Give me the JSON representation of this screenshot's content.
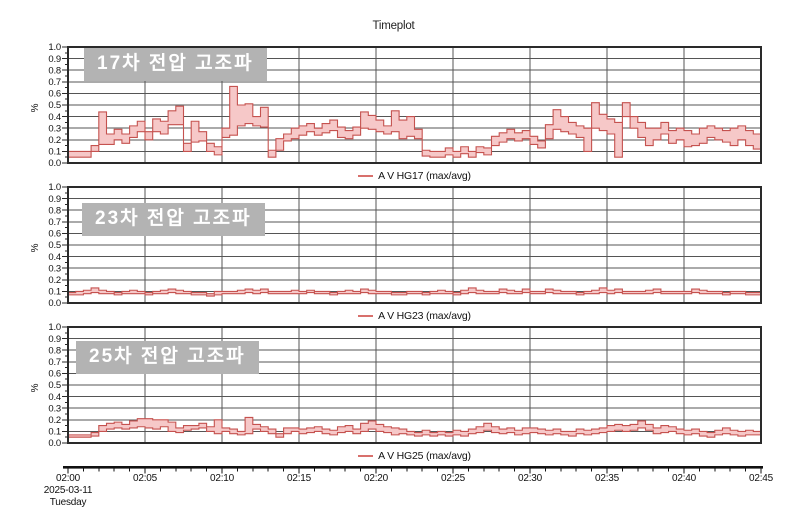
{
  "title": "Timeplot",
  "x_axis": {
    "tick_labels": [
      "02:00",
      "02:05",
      "02:10",
      "02:15",
      "02:20",
      "02:25",
      "02:30",
      "02:35",
      "02:40",
      "02:45"
    ],
    "date": "2025-03-11",
    "day": "Tuesday",
    "minor_tick_minutes": 1,
    "major_tick_minutes": 5
  },
  "y_axis": {
    "unit": "%",
    "tick_labels": [
      "0.0",
      "0.1",
      "0.2",
      "0.3",
      "0.4",
      "0.5",
      "0.6",
      "0.7",
      "0.8",
      "0.9",
      "1.0"
    ]
  },
  "colors": {
    "band_fill": "#f6c8c8",
    "band_stroke": "#c5524f",
    "grid": "#555555",
    "frame": "#2a2a2a",
    "axis": "#111111",
    "label_box_bg": "#b3b3b3",
    "label_box_text": "#ffffff",
    "legend_marker": "#d8706c"
  },
  "chart_data": [
    {
      "type": "area",
      "label": "17차 전압 고조파",
      "legend": "A V HG17 (max/avg)",
      "ylabel": "%",
      "ylim": [
        0,
        1
      ],
      "x_start": "02:00",
      "x_end": "02:45",
      "interval_seconds": 30,
      "grid": true,
      "legend_position": "bottom-center",
      "series": [
        {
          "name": "avg",
          "values": [
            0.05,
            0.05,
            0.05,
            0.1,
            0.16,
            0.16,
            0.2,
            0.17,
            0.22,
            0.27,
            0.2,
            0.27,
            0.25,
            0.33,
            0.33,
            0.1,
            0.18,
            0.19,
            0.1,
            0.07,
            0.22,
            0.24,
            0.32,
            0.34,
            0.32,
            0.31,
            0.05,
            0.11,
            0.19,
            0.21,
            0.24,
            0.27,
            0.24,
            0.26,
            0.28,
            0.22,
            0.21,
            0.24,
            0.3,
            0.29,
            0.27,
            0.25,
            0.27,
            0.21,
            0.23,
            0.21,
            0.06,
            0.05,
            0.05,
            0.07,
            0.05,
            0.08,
            0.05,
            0.09,
            0.07,
            0.15,
            0.18,
            0.21,
            0.19,
            0.21,
            0.16,
            0.13,
            0.21,
            0.29,
            0.27,
            0.25,
            0.22,
            0.1,
            0.3,
            0.28,
            0.25,
            0.05,
            0.4,
            0.3,
            0.22,
            0.15,
            0.2,
            0.25,
            0.17,
            0.2,
            0.14,
            0.15,
            0.17,
            0.22,
            0.2,
            0.18,
            0.15,
            0.2,
            0.15,
            0.12
          ]
        },
        {
          "name": "max",
          "values": [
            0.1,
            0.1,
            0.1,
            0.15,
            0.44,
            0.25,
            0.29,
            0.25,
            0.32,
            0.36,
            0.27,
            0.38,
            0.36,
            0.45,
            0.49,
            0.17,
            0.36,
            0.27,
            0.17,
            0.14,
            0.3,
            0.66,
            0.5,
            0.51,
            0.4,
            0.48,
            0.11,
            0.21,
            0.25,
            0.3,
            0.32,
            0.34,
            0.3,
            0.34,
            0.37,
            0.31,
            0.28,
            0.31,
            0.44,
            0.41,
            0.37,
            0.32,
            0.45,
            0.37,
            0.4,
            0.29,
            0.11,
            0.1,
            0.1,
            0.13,
            0.1,
            0.14,
            0.1,
            0.14,
            0.13,
            0.23,
            0.26,
            0.29,
            0.26,
            0.28,
            0.23,
            0.19,
            0.33,
            0.46,
            0.4,
            0.35,
            0.32,
            0.3,
            0.52,
            0.42,
            0.38,
            0.35,
            0.52,
            0.4,
            0.35,
            0.3,
            0.3,
            0.35,
            0.28,
            0.3,
            0.28,
            0.25,
            0.3,
            0.32,
            0.3,
            0.28,
            0.3,
            0.32,
            0.28,
            0.25
          ]
        }
      ]
    },
    {
      "type": "area",
      "label": "23차 전압 고조파",
      "legend": "A V HG23 (max/avg)",
      "ylabel": "%",
      "ylim": [
        0,
        1
      ],
      "x_start": "02:00",
      "x_end": "02:45",
      "interval_seconds": 30,
      "grid": true,
      "legend_position": "bottom-center",
      "series": [
        {
          "name": "avg",
          "values": [
            0.07,
            0.07,
            0.08,
            0.09,
            0.08,
            0.08,
            0.07,
            0.08,
            0.08,
            0.08,
            0.07,
            0.08,
            0.08,
            0.09,
            0.08,
            0.08,
            0.07,
            0.07,
            0.06,
            0.07,
            0.08,
            0.08,
            0.08,
            0.09,
            0.08,
            0.09,
            0.08,
            0.08,
            0.08,
            0.08,
            0.08,
            0.09,
            0.08,
            0.08,
            0.07,
            0.08,
            0.08,
            0.08,
            0.09,
            0.08,
            0.08,
            0.08,
            0.07,
            0.07,
            0.08,
            0.08,
            0.07,
            0.08,
            0.08,
            0.08,
            0.07,
            0.08,
            0.09,
            0.08,
            0.08,
            0.08,
            0.09,
            0.08,
            0.08,
            0.09,
            0.08,
            0.08,
            0.09,
            0.08,
            0.08,
            0.08,
            0.07,
            0.08,
            0.08,
            0.09,
            0.08,
            0.09,
            0.08,
            0.08,
            0.08,
            0.08,
            0.09,
            0.08,
            0.08,
            0.08,
            0.08,
            0.09,
            0.08,
            0.08,
            0.08,
            0.07,
            0.08,
            0.08,
            0.07,
            0.07
          ]
        },
        {
          "name": "max",
          "values": [
            0.09,
            0.1,
            0.11,
            0.13,
            0.11,
            0.1,
            0.09,
            0.1,
            0.11,
            0.1,
            0.09,
            0.1,
            0.11,
            0.12,
            0.11,
            0.1,
            0.09,
            0.09,
            0.08,
            0.1,
            0.1,
            0.1,
            0.11,
            0.12,
            0.11,
            0.12,
            0.1,
            0.1,
            0.1,
            0.11,
            0.1,
            0.11,
            0.1,
            0.1,
            0.09,
            0.1,
            0.11,
            0.1,
            0.12,
            0.11,
            0.1,
            0.1,
            0.09,
            0.09,
            0.1,
            0.1,
            0.09,
            0.1,
            0.11,
            0.1,
            0.09,
            0.11,
            0.13,
            0.11,
            0.1,
            0.1,
            0.12,
            0.11,
            0.1,
            0.12,
            0.1,
            0.1,
            0.12,
            0.11,
            0.1,
            0.1,
            0.09,
            0.1,
            0.11,
            0.13,
            0.11,
            0.12,
            0.1,
            0.1,
            0.1,
            0.11,
            0.12,
            0.1,
            0.1,
            0.1,
            0.1,
            0.12,
            0.11,
            0.1,
            0.1,
            0.09,
            0.1,
            0.1,
            0.09,
            0.09
          ]
        }
      ]
    },
    {
      "type": "area",
      "label": "25차 전압 고조파",
      "legend": "A V HG25 (max/avg)",
      "ylabel": "%",
      "ylim": [
        0,
        1
      ],
      "x_start": "02:00",
      "x_end": "02:45",
      "interval_seconds": 30,
      "grid": true,
      "legend_position": "bottom-center",
      "series": [
        {
          "name": "avg",
          "values": [
            0.05,
            0.05,
            0.05,
            0.06,
            0.1,
            0.12,
            0.13,
            0.12,
            0.13,
            0.14,
            0.13,
            0.12,
            0.14,
            0.1,
            0.09,
            0.11,
            0.12,
            0.13,
            0.1,
            0.08,
            0.1,
            0.08,
            0.07,
            0.08,
            0.12,
            0.1,
            0.08,
            0.05,
            0.08,
            0.1,
            0.08,
            0.09,
            0.1,
            0.08,
            0.07,
            0.09,
            0.1,
            0.08,
            0.1,
            0.12,
            0.1,
            0.09,
            0.07,
            0.08,
            0.07,
            0.06,
            0.07,
            0.06,
            0.07,
            0.06,
            0.07,
            0.06,
            0.08,
            0.09,
            0.11,
            0.09,
            0.08,
            0.09,
            0.07,
            0.08,
            0.09,
            0.08,
            0.07,
            0.08,
            0.07,
            0.06,
            0.08,
            0.07,
            0.08,
            0.09,
            0.1,
            0.11,
            0.1,
            0.11,
            0.13,
            0.11,
            0.08,
            0.09,
            0.1,
            0.08,
            0.07,
            0.08,
            0.06,
            0.05,
            0.07,
            0.08,
            0.07,
            0.06,
            0.07,
            0.07
          ]
        },
        {
          "name": "max",
          "values": [
            0.07,
            0.07,
            0.07,
            0.09,
            0.15,
            0.17,
            0.18,
            0.16,
            0.19,
            0.21,
            0.21,
            0.2,
            0.2,
            0.18,
            0.13,
            0.15,
            0.15,
            0.17,
            0.14,
            0.2,
            0.13,
            0.12,
            0.1,
            0.22,
            0.16,
            0.14,
            0.12,
            0.08,
            0.13,
            0.13,
            0.12,
            0.13,
            0.14,
            0.12,
            0.11,
            0.14,
            0.15,
            0.12,
            0.17,
            0.19,
            0.16,
            0.14,
            0.13,
            0.12,
            0.1,
            0.09,
            0.11,
            0.09,
            0.1,
            0.09,
            0.11,
            0.1,
            0.12,
            0.14,
            0.17,
            0.14,
            0.12,
            0.13,
            0.11,
            0.13,
            0.13,
            0.12,
            0.11,
            0.12,
            0.1,
            0.1,
            0.12,
            0.11,
            0.12,
            0.13,
            0.15,
            0.16,
            0.15,
            0.16,
            0.19,
            0.16,
            0.13,
            0.15,
            0.14,
            0.12,
            0.11,
            0.12,
            0.1,
            0.09,
            0.11,
            0.13,
            0.11,
            0.1,
            0.11,
            0.1
          ]
        }
      ]
    }
  ]
}
